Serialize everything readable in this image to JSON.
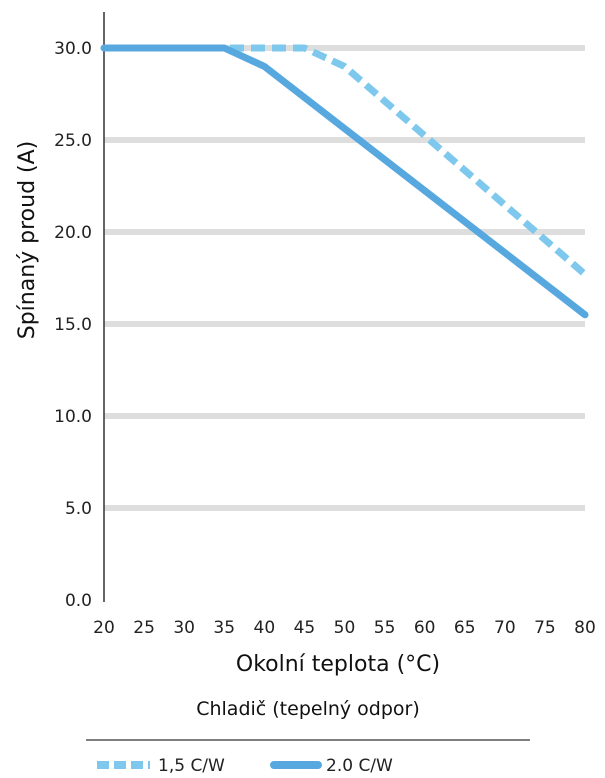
{
  "chart_data": {
    "type": "line",
    "xlabel": "Okolní teplota (°C)",
    "ylabel": "Spínaný proud (A)",
    "legend_title": "Chladič (tepelný odpor)",
    "legend_position": "bottom",
    "grid": true,
    "xlim": [
      20,
      80
    ],
    "ylim": [
      0,
      30
    ],
    "x_ticks": [
      "20",
      "25",
      "30",
      "35",
      "40",
      "45",
      "50",
      "55",
      "60",
      "65",
      "70",
      "75",
      "80"
    ],
    "y_ticks": [
      "0.0",
      "5.0",
      "10.0",
      "15.0",
      "20.0",
      "25.0",
      "30.0"
    ],
    "series": [
      {
        "name": "1,5 C/W",
        "style": "dashed",
        "color": "#7ec8ee",
        "points": [
          [
            20,
            30.0
          ],
          [
            45,
            30.0
          ],
          [
            50,
            29.0
          ],
          [
            80,
            17.7
          ]
        ]
      },
      {
        "name": "2.0 C/W",
        "style": "solid",
        "color": "#58a8e0",
        "points": [
          [
            20,
            30.0
          ],
          [
            35,
            30.0
          ],
          [
            40,
            29.0
          ],
          [
            80,
            15.5
          ]
        ]
      }
    ]
  }
}
